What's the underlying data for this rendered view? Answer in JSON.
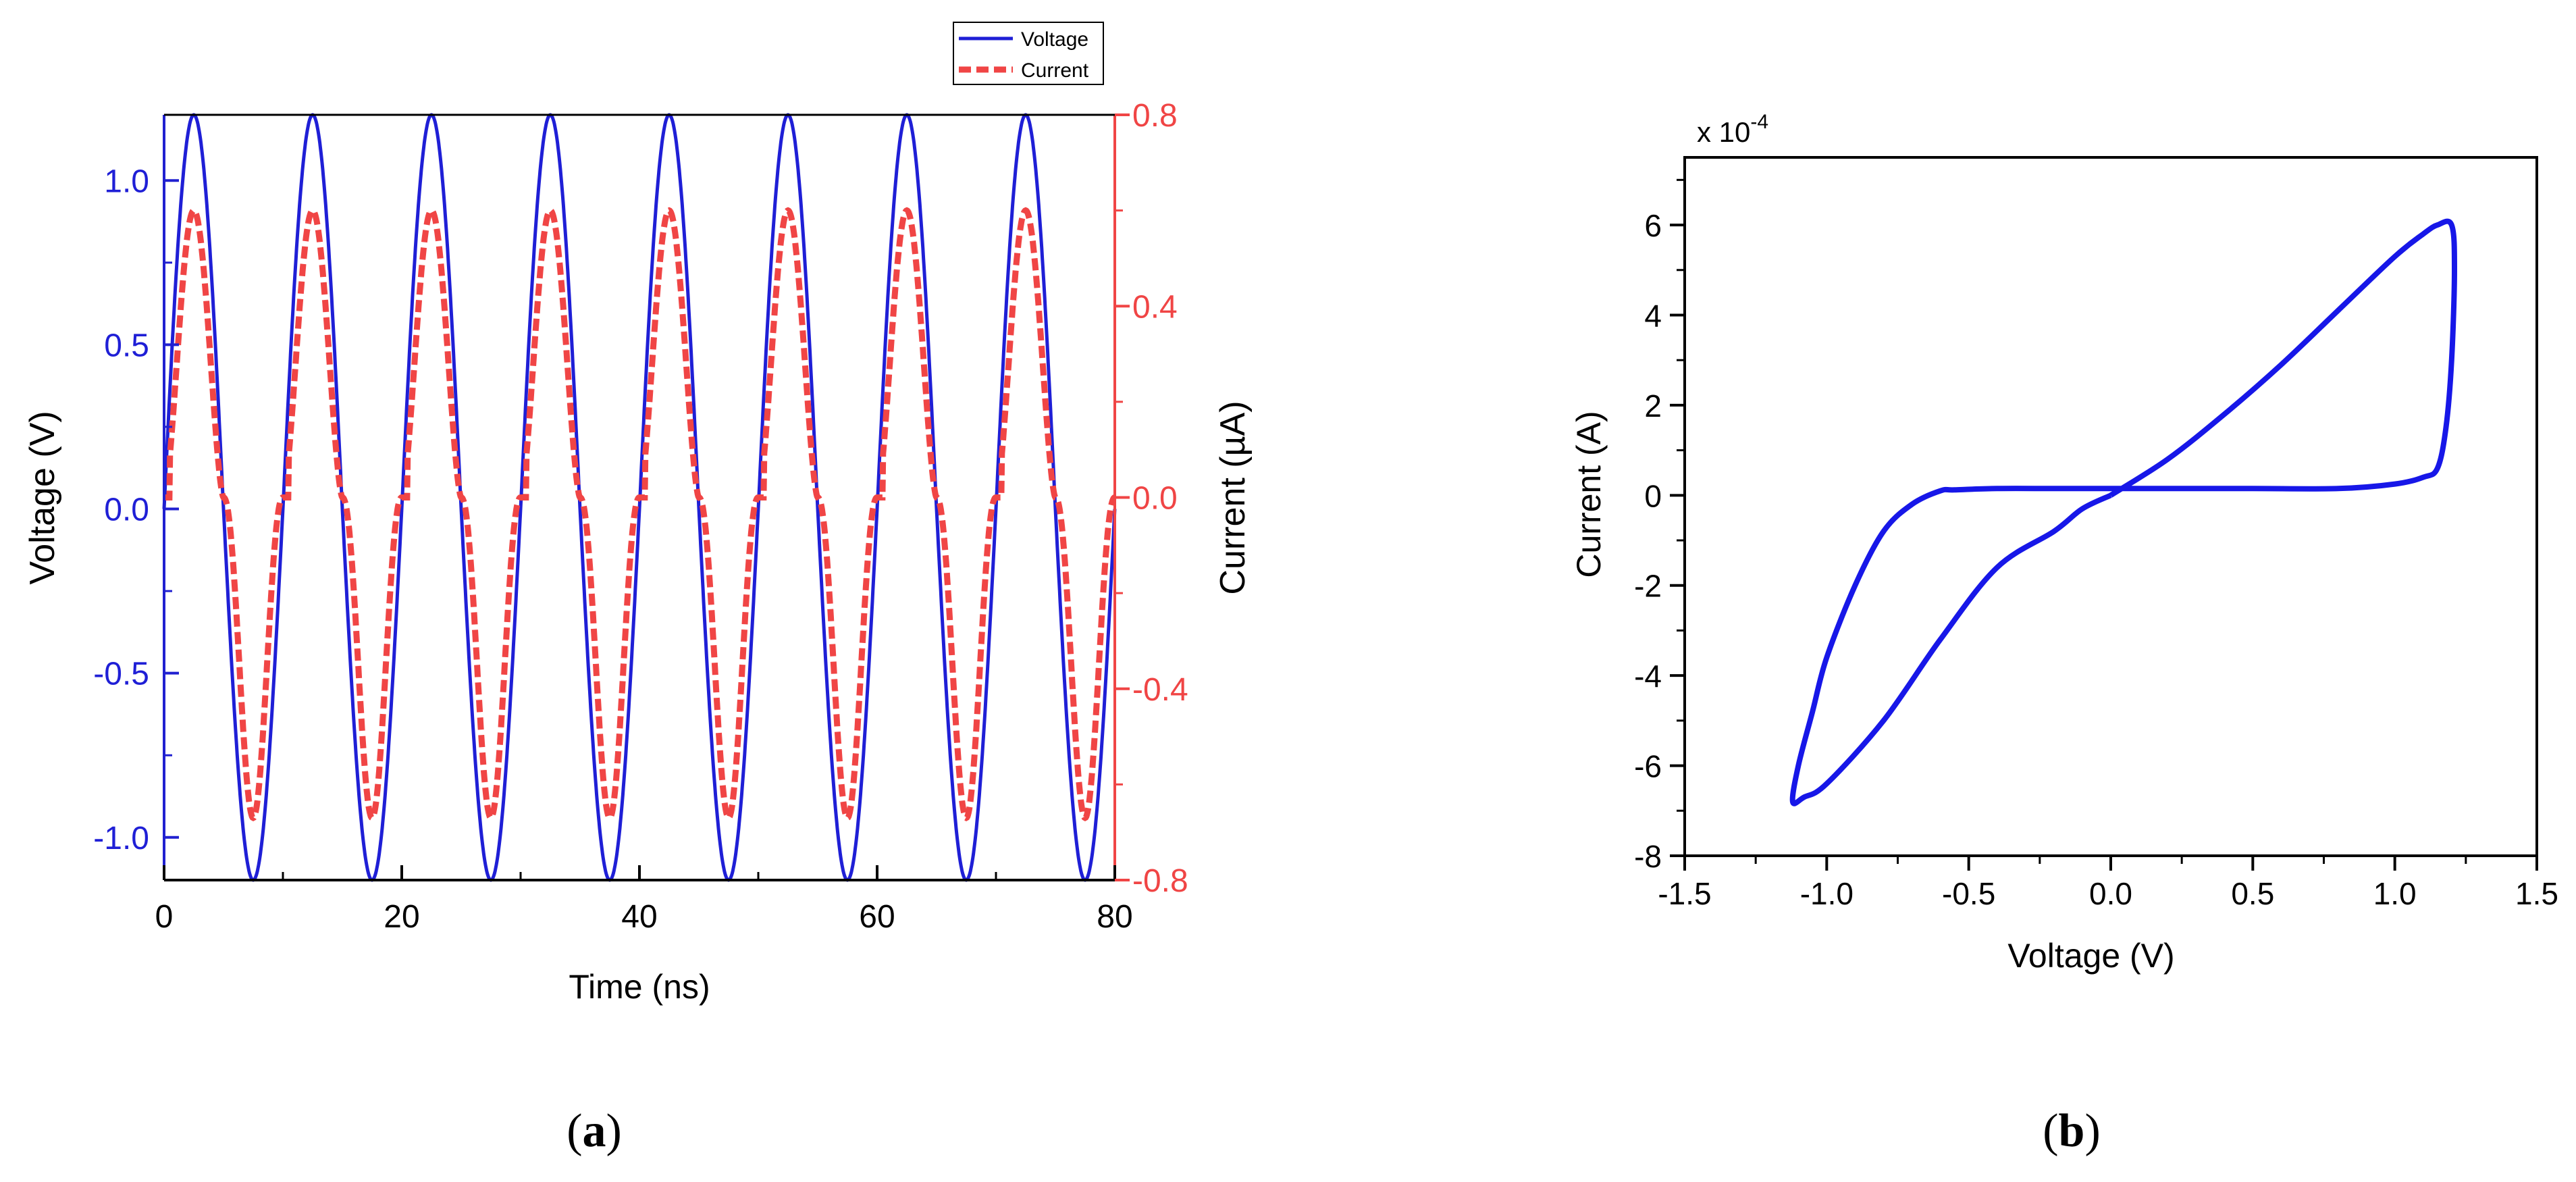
{
  "chart_data": [
    {
      "type": "line",
      "panel": "a",
      "panel_label": "a",
      "xlabel": "Time (ns)",
      "ylabel_left": "Voltage (V)",
      "ylabel_right": "Current (µA)",
      "xlim": [
        0,
        80
      ],
      "ylim_left": [
        -1.13,
        1.2
      ],
      "ylim_right": [
        -0.8,
        0.8
      ],
      "x_ticks": [
        "0",
        "20",
        "40",
        "60",
        "80"
      ],
      "x_tick_values": [
        0,
        20,
        40,
        60,
        80
      ],
      "y_left_ticks": [
        "1.0",
        "0.5",
        "0.0",
        "-0.5",
        "-1.0"
      ],
      "y_left_tick_values": [
        1.0,
        0.5,
        0.0,
        -0.5,
        -1.0
      ],
      "y_right_ticks": [
        "0.8",
        "0.4",
        "0.0",
        "-0.4",
        "-0.8"
      ],
      "y_right_tick_values": [
        0.8,
        0.4,
        0.0,
        -0.4,
        -0.8
      ],
      "legend": [
        "Voltage",
        "Current"
      ],
      "legend_position": "top-right",
      "series": [
        {
          "name": "Voltage",
          "axis": "left",
          "color": "#1f1fd6",
          "style": "solid",
          "period_ns": 10,
          "amplitude_V": 1.2,
          "negative_peak_V": -1.13,
          "cycles": 8
        },
        {
          "name": "Current",
          "axis": "right",
          "color": "#f04545",
          "style": "dashed",
          "period_ns": 10,
          "positive_peak_uA": 0.6,
          "negative_peak_uA": -0.67,
          "zero_plateau_after_ns": 0.5,
          "cycles": 8
        }
      ]
    },
    {
      "type": "line",
      "panel": "b",
      "panel_label": "b",
      "xlabel": "Voltage (V)",
      "ylabel": "Current (A)",
      "xlim": [
        -1.5,
        1.5
      ],
      "ylim": [
        -8,
        7.5
      ],
      "scale_label": "x 10",
      "scale_exponent": "-4",
      "x_ticks": [
        "-1.5",
        "-1.0",
        "-0.5",
        "0.0",
        "0.5",
        "1.0",
        "1.5"
      ],
      "x_tick_values": [
        -1.5,
        -1.0,
        -0.5,
        0.0,
        0.5,
        1.0,
        1.5
      ],
      "y_ticks": [
        "6",
        "4",
        "2",
        "0",
        "-2",
        "-4",
        "-6",
        "-8"
      ],
      "y_tick_values": [
        6,
        4,
        2,
        0,
        -2,
        -4,
        -6,
        -8
      ],
      "series": [
        {
          "name": "I-V loop",
          "color": "#1717e8",
          "unit_scale": "1e-4 A",
          "x": [
            0.0,
            0.2,
            0.4,
            0.6,
            0.8,
            1.0,
            1.1,
            1.15,
            1.2,
            1.21,
            1.2,
            1.18,
            1.15,
            1.1,
            1.0,
            0.8,
            0.5,
            0.2,
            0.0,
            -0.2,
            -0.4,
            -0.55,
            -0.6,
            -0.7,
            -0.8,
            -0.9,
            -1.0,
            -1.05,
            -1.1,
            -1.12,
            -1.08,
            -1.0,
            -0.8,
            -0.6,
            -0.4,
            -0.2,
            -0.1,
            0.0
          ],
          "y": [
            0.0,
            0.8,
            1.8,
            2.9,
            4.1,
            5.3,
            5.8,
            6.0,
            6.0,
            5.0,
            3.0,
            1.5,
            0.6,
            0.4,
            0.25,
            0.15,
            0.15,
            0.15,
            0.15,
            0.15,
            0.15,
            0.12,
            0.1,
            -0.2,
            -0.8,
            -2.0,
            -3.6,
            -4.8,
            -6.0,
            -6.8,
            -6.7,
            -6.4,
            -5.0,
            -3.2,
            -1.6,
            -0.8,
            -0.3,
            0.0
          ]
        }
      ]
    }
  ]
}
